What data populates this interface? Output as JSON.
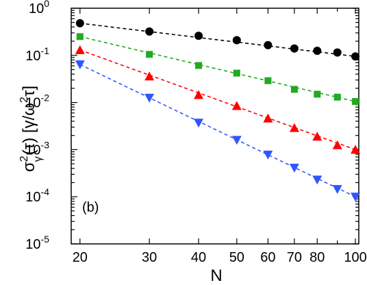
{
  "chart_data": {
    "type": "scatter",
    "panel_label": "(b)",
    "xlabel": "N",
    "ylabel": "σ²ᵧ(τ) [γ/ω²τ]",
    "x_scale": "log",
    "y_scale": "log",
    "xlim": [
      19,
      102
    ],
    "ylim": [
      1e-05,
      1
    ],
    "x_ticks": [
      20,
      30,
      40,
      50,
      60,
      70,
      80,
      100
    ],
    "x_tick_labels": [
      "20",
      "30",
      "40",
      "50",
      "60",
      "70",
      "80",
      "100"
    ],
    "y_ticks": [
      1e-05,
      0.0001,
      0.001,
      0.01,
      0.1,
      1
    ],
    "y_tick_labels": [
      {
        "base": "10",
        "exp": "-5"
      },
      {
        "base": "10",
        "exp": "-4"
      },
      {
        "base": "10",
        "exp": "-3"
      },
      {
        "base": "10",
        "exp": "-2"
      },
      {
        "base": "10",
        "exp": "-1"
      },
      {
        "base": "10",
        "exp": "0"
      }
    ],
    "grid": false,
    "series": [
      {
        "marker": "circle",
        "color": "#000000",
        "x": [
          20,
          30,
          40,
          50,
          60,
          70,
          80,
          90,
          100
        ],
        "y": [
          0.48,
          0.32,
          0.26,
          0.21,
          0.165,
          0.14,
          0.125,
          0.115,
          0.095
        ]
      },
      {
        "marker": "square",
        "color": "#22aa22",
        "x": [
          20,
          30,
          40,
          50,
          60,
          70,
          80,
          90,
          100
        ],
        "y": [
          0.25,
          0.105,
          0.061,
          0.042,
          0.029,
          0.019,
          0.015,
          0.013,
          0.0105
        ]
      },
      {
        "marker": "triangle-up",
        "color": "#ff0000",
        "x": [
          20,
          30,
          40,
          50,
          60,
          70,
          80,
          90,
          100
        ],
        "y": [
          0.13,
          0.036,
          0.0145,
          0.0085,
          0.0046,
          0.0029,
          0.0019,
          0.00125,
          0.001
        ]
      },
      {
        "marker": "triangle-down",
        "color": "#3355ff",
        "x": [
          20,
          30,
          40,
          50,
          60,
          70,
          80,
          90,
          100
        ],
        "y": [
          0.064,
          0.0125,
          0.0037,
          0.0016,
          0.00078,
          0.00041,
          0.00023,
          0.000145,
          0.0001
        ]
      }
    ]
  }
}
